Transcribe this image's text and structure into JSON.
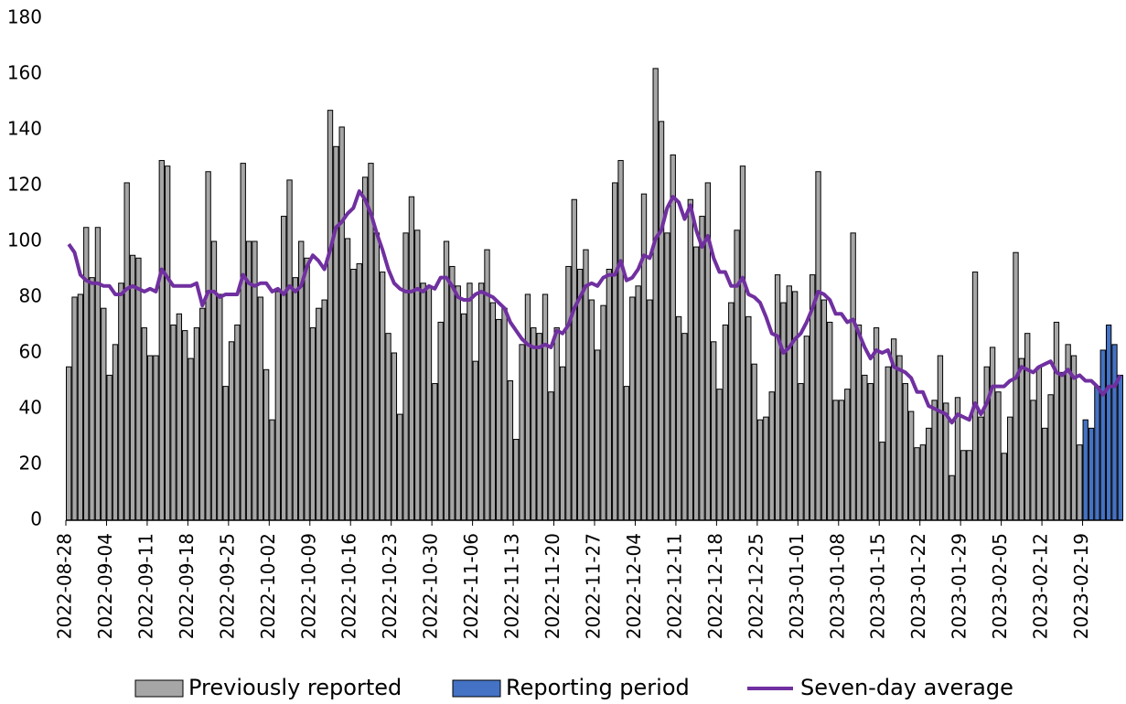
{
  "chart_data": {
    "type": "bar",
    "categories": [
      "2022-08-28",
      null,
      null,
      null,
      null,
      null,
      null,
      "2022-09-04",
      null,
      null,
      null,
      null,
      null,
      null,
      "2022-09-11",
      null,
      null,
      null,
      null,
      null,
      null,
      "2022-09-18",
      null,
      null,
      null,
      null,
      null,
      null,
      "2022-09-25",
      null,
      null,
      null,
      null,
      null,
      null,
      "2022-10-02",
      null,
      null,
      null,
      null,
      null,
      null,
      "2022-10-09",
      null,
      null,
      null,
      null,
      null,
      null,
      "2022-10-16",
      null,
      null,
      null,
      null,
      null,
      null,
      "2022-10-23",
      null,
      null,
      null,
      null,
      null,
      null,
      "2022-10-30",
      null,
      null,
      null,
      null,
      null,
      null,
      "2022-11-06",
      null,
      null,
      null,
      null,
      null,
      null,
      "2022-11-13",
      null,
      null,
      null,
      null,
      null,
      null,
      "2022-11-20",
      null,
      null,
      null,
      null,
      null,
      null,
      "2022-11-27",
      null,
      null,
      null,
      null,
      null,
      null,
      "2022-12-04",
      null,
      null,
      null,
      null,
      null,
      null,
      "2022-12-11",
      null,
      null,
      null,
      null,
      null,
      null,
      "2022-12-18",
      null,
      null,
      null,
      null,
      null,
      null,
      "2022-12-25",
      null,
      null,
      null,
      null,
      null,
      null,
      "2023-01-01",
      null,
      null,
      null,
      null,
      null,
      null,
      "2023-01-08",
      null,
      null,
      null,
      null,
      null,
      null,
      "2023-01-15",
      null,
      null,
      null,
      null,
      null,
      null,
      "2023-01-22",
      null,
      null,
      null,
      null,
      null,
      null,
      "2023-01-29",
      null,
      null,
      null,
      null,
      null,
      null,
      "2023-02-05",
      null,
      null,
      null,
      null,
      null,
      null,
      "2023-02-12",
      null,
      null,
      null,
      null,
      null,
      null,
      "2023-02-19",
      null,
      null,
      null,
      null,
      null,
      null
    ],
    "series": [
      {
        "name": "Previously reported",
        "type": "bar",
        "color": "#a6a6a6",
        "values": [
          55,
          80,
          81,
          105,
          87,
          105,
          76,
          52,
          63,
          85,
          121,
          95,
          94,
          69,
          59,
          59,
          129,
          127,
          70,
          74,
          68,
          58,
          69,
          76,
          125,
          100,
          81,
          48,
          64,
          70,
          128,
          100,
          100,
          80,
          54,
          36,
          82,
          109,
          122,
          87,
          100,
          94,
          69,
          76,
          79,
          147,
          134,
          141,
          101,
          90,
          92,
          123,
          128,
          103,
          89,
          67,
          60,
          38,
          103,
          116,
          104,
          85,
          84,
          49,
          71,
          100,
          91,
          84,
          74,
          85,
          57,
          85,
          97,
          78,
          72,
          76,
          50,
          29,
          63,
          81,
          69,
          67,
          81,
          46,
          69,
          55,
          91,
          115,
          90,
          97,
          79,
          61,
          77,
          90,
          121,
          129,
          48,
          80,
          84,
          117,
          79,
          162,
          143,
          103,
          131,
          73,
          67,
          115,
          98,
          109,
          121,
          64,
          47,
          70,
          78,
          104,
          127,
          73,
          56,
          36,
          37,
          46,
          88,
          78,
          84,
          82,
          49,
          66,
          88,
          125,
          79,
          71,
          43,
          43,
          47,
          103,
          70,
          52,
          49,
          69,
          28,
          55,
          65,
          59,
          49,
          39,
          26,
          27,
          33,
          43,
          59,
          42,
          16,
          44,
          25,
          25,
          89,
          37,
          55,
          62,
          46,
          24,
          37,
          96,
          58,
          67,
          43,
          55,
          33,
          45,
          71,
          53,
          63,
          59,
          27,
          null,
          null,
          null,
          null,
          null,
          null,
          null
        ]
      },
      {
        "name": "Reporting period",
        "type": "bar",
        "color": "#4472c4",
        "values": [
          null,
          null,
          null,
          null,
          null,
          null,
          null,
          null,
          null,
          null,
          null,
          null,
          null,
          null,
          null,
          null,
          null,
          null,
          null,
          null,
          null,
          null,
          null,
          null,
          null,
          null,
          null,
          null,
          null,
          null,
          null,
          null,
          null,
          null,
          null,
          null,
          null,
          null,
          null,
          null,
          null,
          null,
          null,
          null,
          null,
          null,
          null,
          null,
          null,
          null,
          null,
          null,
          null,
          null,
          null,
          null,
          null,
          null,
          null,
          null,
          null,
          null,
          null,
          null,
          null,
          null,
          null,
          null,
          null,
          null,
          null,
          null,
          null,
          null,
          null,
          null,
          null,
          null,
          null,
          null,
          null,
          null,
          null,
          null,
          null,
          null,
          null,
          null,
          null,
          null,
          null,
          null,
          null,
          null,
          null,
          null,
          null,
          null,
          null,
          null,
          null,
          null,
          null,
          null,
          null,
          null,
          null,
          null,
          null,
          null,
          null,
          null,
          null,
          null,
          null,
          null,
          null,
          null,
          null,
          null,
          null,
          null,
          null,
          null,
          null,
          null,
          null,
          null,
          null,
          null,
          null,
          null,
          null,
          null,
          null,
          null,
          null,
          null,
          null,
          null,
          null,
          null,
          null,
          null,
          null,
          null,
          null,
          null,
          null,
          null,
          null,
          null,
          null,
          null,
          null,
          null,
          null,
          null,
          null,
          null,
          null,
          null,
          null,
          null,
          null,
          null,
          null,
          null,
          null,
          null,
          null,
          null,
          null,
          null,
          null,
          36,
          33,
          48,
          61,
          70,
          63,
          52
        ]
      },
      {
        "name": "Seven-day average",
        "type": "line",
        "color": "#7030a0",
        "values": [
          99,
          96,
          88,
          86,
          85,
          85,
          84,
          84,
          81,
          81,
          83,
          84,
          83,
          82,
          83,
          82,
          90,
          87,
          84,
          84,
          84,
          84,
          85,
          77,
          82,
          82,
          80,
          81,
          81,
          81,
          88,
          85,
          84,
          85,
          85,
          82,
          83,
          81,
          84,
          82,
          84,
          91,
          95,
          93,
          90,
          97,
          105,
          107,
          110,
          112,
          118,
          115,
          110,
          103,
          97,
          90,
          85,
          83,
          82,
          82,
          83,
          82,
          84,
          83,
          87,
          87,
          84,
          80,
          79,
          79,
          81,
          82,
          81,
          80,
          78,
          76,
          71,
          68,
          65,
          63,
          62,
          62,
          63,
          62,
          68,
          67,
          70,
          76,
          80,
          84,
          85,
          84,
          87,
          88,
          88,
          93,
          86,
          87,
          90,
          95,
          94,
          101,
          104,
          112,
          116,
          114,
          108,
          113,
          104,
          98,
          102,
          94,
          89,
          89,
          84,
          84,
          87,
          81,
          80,
          78,
          73,
          67,
          66,
          60,
          62,
          65,
          67,
          71,
          76,
          82,
          81,
          79,
          74,
          74,
          71,
          72,
          67,
          62,
          58,
          61,
          60,
          61,
          55,
          54,
          53,
          51,
          46,
          46,
          41,
          40,
          39,
          38,
          35,
          38,
          37,
          36,
          42,
          38,
          42,
          48,
          48,
          48,
          50,
          51,
          55,
          54,
          53,
          55,
          56,
          57,
          53,
          52,
          54,
          51,
          52,
          50,
          50,
          48,
          45,
          48,
          48,
          52
        ]
      }
    ],
    "ylim": [
      0,
      180
    ],
    "yticks": [
      0,
      20,
      40,
      60,
      80,
      100,
      120,
      140,
      160,
      180
    ],
    "grid": false,
    "legend": "bottom"
  }
}
